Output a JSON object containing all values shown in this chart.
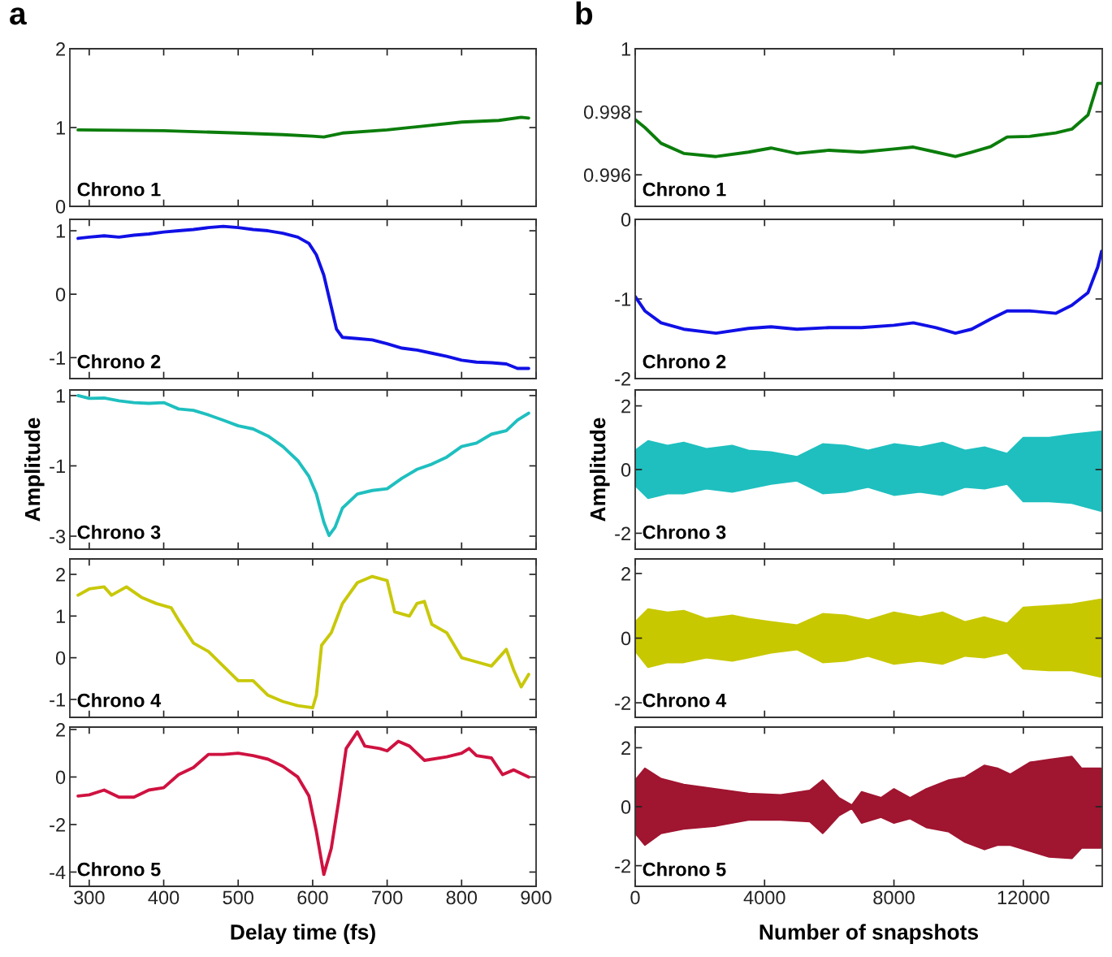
{
  "chart_data": [
    {
      "type": "line",
      "title": "a",
      "annotations": [
        "Chrono 1"
      ],
      "xlim": [
        274,
        900
      ],
      "xticks": [
        300,
        400,
        500,
        600,
        700,
        800,
        900
      ],
      "ylim": [
        0,
        2
      ],
      "yticks": [
        0,
        1,
        2
      ],
      "tick_labels": "y",
      "series": [
        {
          "color": "#0b7d0b",
          "x": [
            285,
            400,
            500,
            560,
            600,
            615,
            640,
            700,
            750,
            800,
            850,
            880,
            890
          ],
          "values": [
            0.97,
            0.96,
            0.93,
            0.91,
            0.89,
            0.88,
            0.93,
            0.97,
            1.02,
            1.07,
            1.09,
            1.13,
            1.12
          ]
        }
      ]
    },
    {
      "type": "line",
      "annotations": [
        "Chrono 2"
      ],
      "xlim": [
        274,
        900
      ],
      "xticks": [
        300,
        400,
        500,
        600,
        700,
        800,
        900
      ],
      "ylim": [
        -1.33,
        1.18
      ],
      "yticks": [
        -1,
        0,
        1
      ],
      "tick_labels": "y",
      "series": [
        {
          "color": "#1010e6",
          "x": [
            285,
            300,
            320,
            340,
            360,
            380,
            400,
            420,
            440,
            460,
            480,
            500,
            520,
            540,
            560,
            580,
            595,
            605,
            615,
            625,
            632,
            640,
            660,
            680,
            700,
            720,
            740,
            760,
            780,
            800,
            820,
            840,
            860,
            875,
            890
          ],
          "values": [
            0.88,
            0.9,
            0.92,
            0.9,
            0.93,
            0.95,
            0.98,
            1.0,
            1.02,
            1.05,
            1.07,
            1.05,
            1.02,
            1.0,
            0.96,
            0.9,
            0.8,
            0.62,
            0.3,
            -0.2,
            -0.55,
            -0.68,
            -0.7,
            -0.72,
            -0.78,
            -0.85,
            -0.88,
            -0.93,
            -0.98,
            -1.04,
            -1.07,
            -1.08,
            -1.1,
            -1.17,
            -1.17
          ]
        }
      ]
    },
    {
      "type": "line",
      "ylabel": "Amplitude",
      "annotations": [
        "Chrono 3"
      ],
      "xlim": [
        274,
        900
      ],
      "xticks": [
        300,
        400,
        500,
        600,
        700,
        800,
        900
      ],
      "ylim": [
        -3.37,
        1.16
      ],
      "yticks": [
        -3,
        -1,
        1
      ],
      "tick_labels": "y",
      "series": [
        {
          "color": "#1fbfbf",
          "x": [
            285,
            300,
            320,
            340,
            360,
            380,
            400,
            420,
            440,
            460,
            480,
            500,
            520,
            540,
            560,
            580,
            595,
            605,
            615,
            622,
            630,
            640,
            660,
            680,
            700,
            720,
            740,
            760,
            780,
            800,
            820,
            840,
            860,
            875,
            890
          ],
          "values": [
            1.0,
            0.92,
            0.93,
            0.85,
            0.8,
            0.78,
            0.8,
            0.62,
            0.58,
            0.45,
            0.3,
            0.14,
            0.05,
            -0.15,
            -0.45,
            -0.85,
            -1.3,
            -1.8,
            -2.6,
            -2.98,
            -2.75,
            -2.2,
            -1.8,
            -1.7,
            -1.65,
            -1.35,
            -1.1,
            -0.95,
            -0.75,
            -0.45,
            -0.35,
            -0.1,
            0.0,
            0.3,
            0.5
          ]
        }
      ]
    },
    {
      "type": "line",
      "annotations": [
        "Chrono 4"
      ],
      "xlim": [
        274,
        900
      ],
      "xticks": [
        300,
        400,
        500,
        600,
        700,
        800,
        900
      ],
      "ylim": [
        -1.43,
        2.37
      ],
      "yticks": [
        -1,
        0,
        1,
        2
      ],
      "tick_labels": "y",
      "series": [
        {
          "color": "#c8c80a",
          "x": [
            285,
            300,
            320,
            330,
            350,
            370,
            390,
            410,
            420,
            440,
            460,
            480,
            500,
            520,
            540,
            560,
            580,
            600,
            605,
            612,
            625,
            640,
            660,
            680,
            700,
            710,
            730,
            740,
            750,
            760,
            780,
            800,
            820,
            840,
            860,
            870,
            880,
            890
          ],
          "values": [
            1.5,
            1.65,
            1.7,
            1.5,
            1.7,
            1.45,
            1.3,
            1.2,
            0.9,
            0.35,
            0.15,
            -0.2,
            -0.55,
            -0.55,
            -0.9,
            -1.05,
            -1.15,
            -1.2,
            -0.9,
            0.3,
            0.6,
            1.3,
            1.8,
            1.95,
            1.85,
            1.1,
            1.0,
            1.3,
            1.35,
            0.8,
            0.6,
            0.0,
            -0.1,
            -0.2,
            0.2,
            -0.3,
            -0.7,
            -0.4
          ]
        }
      ]
    },
    {
      "type": "line",
      "xlabel": "Delay time (fs)",
      "annotations": [
        "Chrono 5"
      ],
      "xlim": [
        274,
        900
      ],
      "xticks": [
        300,
        400,
        500,
        600,
        700,
        800,
        900
      ],
      "ylim": [
        -4.6,
        2.1
      ],
      "yticks": [
        -4,
        -2,
        0,
        2
      ],
      "series": [
        {
          "color": "#cf1240",
          "x": [
            285,
            300,
            320,
            340,
            360,
            380,
            400,
            420,
            440,
            460,
            480,
            500,
            520,
            540,
            560,
            580,
            595,
            605,
            615,
            625,
            635,
            645,
            660,
            670,
            690,
            700,
            715,
            730,
            750,
            780,
            800,
            810,
            820,
            840,
            855,
            870,
            890
          ],
          "values": [
            -0.8,
            -0.75,
            -0.55,
            -0.85,
            -0.85,
            -0.55,
            -0.45,
            0.1,
            0.4,
            0.95,
            0.95,
            1.0,
            0.9,
            0.75,
            0.45,
            0.0,
            -0.8,
            -2.3,
            -4.1,
            -3.0,
            -1.0,
            1.2,
            1.9,
            1.3,
            1.2,
            1.1,
            1.5,
            1.3,
            0.7,
            0.85,
            1.0,
            1.2,
            0.9,
            0.8,
            0.1,
            0.3,
            0.0
          ]
        }
      ]
    },
    {
      "type": "line",
      "title": "b",
      "annotations": [
        "Chrono 1"
      ],
      "xlim": [
        0,
        14440
      ],
      "xticks": [
        0,
        4000,
        8000,
        12000
      ],
      "ylim": [
        0.995,
        1
      ],
      "yticks": [
        0.996,
        0.998,
        1
      ],
      "tick_labels": "y",
      "series": [
        {
          "color": "#0b7d0b",
          "x": [
            0,
            300,
            800,
            1500,
            2500,
            3500,
            4200,
            5000,
            6000,
            7000,
            8000,
            8600,
            9300,
            9900,
            10400,
            11000,
            11500,
            12200,
            13000,
            13500,
            14000,
            14300,
            14420
          ],
          "values": [
            0.99775,
            0.9975,
            0.997,
            0.99668,
            0.99658,
            0.99672,
            0.99685,
            0.99668,
            0.99678,
            0.99672,
            0.99682,
            0.99688,
            0.99672,
            0.99658,
            0.99672,
            0.9969,
            0.9972,
            0.99722,
            0.99733,
            0.99745,
            0.9979,
            0.9989,
            0.9989
          ]
        }
      ]
    },
    {
      "type": "line",
      "annotations": [
        "Chrono 2"
      ],
      "xlim": [
        0,
        14440
      ],
      "xticks": [
        0,
        4000,
        8000,
        12000
      ],
      "ylim": [
        -2,
        0
      ],
      "yticks": [
        -2,
        -1,
        0
      ],
      "tick_labels": "y",
      "series": [
        {
          "color": "#1010e6",
          "x": [
            0,
            300,
            800,
            1500,
            2500,
            3500,
            4200,
            5000,
            6000,
            7000,
            8000,
            8600,
            9300,
            9900,
            10400,
            11000,
            11500,
            12200,
            13000,
            13500,
            14000,
            14300,
            14420
          ],
          "values": [
            -0.97,
            -1.15,
            -1.3,
            -1.38,
            -1.43,
            -1.37,
            -1.35,
            -1.38,
            -1.36,
            -1.36,
            -1.33,
            -1.3,
            -1.36,
            -1.43,
            -1.38,
            -1.25,
            -1.15,
            -1.15,
            -1.18,
            -1.08,
            -0.92,
            -0.6,
            -0.4
          ]
        }
      ]
    },
    {
      "type": "line",
      "ylabel": "Amplitude",
      "annotations": [
        "Chrono 3"
      ],
      "xlim": [
        0,
        14440
      ],
      "xticks": [
        0,
        4000,
        8000,
        12000
      ],
      "ylim": [
        -2.5,
        2.5
      ],
      "yticks": [
        -2,
        0,
        2
      ],
      "tick_labels": "y",
      "series": [
        {
          "type": "area",
          "color": "#1fbfbf",
          "x": [
            0,
            400,
            1000,
            1500,
            2200,
            3000,
            3500,
            4200,
            5000,
            5800,
            6500,
            7200,
            8000,
            8800,
            9500,
            10200,
            10800,
            11500,
            12000,
            12800,
            13500,
            14400
          ],
          "values": [
            0.6,
            0.9,
            0.75,
            0.85,
            0.65,
            0.75,
            0.6,
            0.55,
            0.4,
            0.8,
            0.75,
            0.6,
            0.8,
            0.7,
            0.85,
            0.6,
            0.7,
            0.5,
            1.0,
            1.0,
            1.1,
            1.2
          ]
        },
        {
          "type": "area",
          "color": "#1fbfbf",
          "x": [
            0,
            400,
            1000,
            1500,
            2200,
            3000,
            3500,
            4200,
            5000,
            5800,
            6500,
            7200,
            8000,
            8800,
            9500,
            10200,
            10800,
            11500,
            12000,
            12800,
            13500,
            14400
          ],
          "values": [
            -0.5,
            -0.9,
            -0.75,
            -0.75,
            -0.6,
            -0.7,
            -0.6,
            -0.45,
            -0.35,
            -0.75,
            -0.7,
            -0.55,
            -0.8,
            -0.7,
            -0.8,
            -0.55,
            -0.6,
            -0.45,
            -1.0,
            -1.0,
            -1.05,
            -1.3
          ]
        }
      ]
    },
    {
      "type": "line",
      "annotations": [
        "Chrono 4"
      ],
      "xlim": [
        0,
        14440
      ],
      "xticks": [
        0,
        4000,
        8000,
        12000
      ],
      "ylim": [
        -2.45,
        2.45
      ],
      "yticks": [
        -2,
        0,
        2
      ],
      "tick_labels": "y",
      "series": [
        {
          "type": "area",
          "color": "#c8c800",
          "x": [
            0,
            400,
            1000,
            1500,
            2200,
            3000,
            3500,
            4200,
            5000,
            5800,
            6500,
            7200,
            8000,
            8800,
            9500,
            10200,
            10800,
            11500,
            12000,
            12800,
            13500,
            14400
          ],
          "values": [
            0.5,
            0.9,
            0.8,
            0.85,
            0.6,
            0.7,
            0.6,
            0.5,
            0.4,
            0.75,
            0.7,
            0.55,
            0.8,
            0.65,
            0.8,
            0.5,
            0.65,
            0.45,
            0.95,
            1.0,
            1.05,
            1.2
          ]
        },
        {
          "type": "area",
          "color": "#c8c800",
          "x": [
            0,
            400,
            1000,
            1500,
            2200,
            3000,
            3500,
            4200,
            5000,
            5800,
            6500,
            7200,
            8000,
            8800,
            9500,
            10200,
            10800,
            11500,
            12000,
            12800,
            13500,
            14400
          ],
          "values": [
            -0.4,
            -0.9,
            -0.75,
            -0.75,
            -0.6,
            -0.7,
            -0.6,
            -0.45,
            -0.35,
            -0.75,
            -0.7,
            -0.55,
            -0.8,
            -0.7,
            -0.8,
            -0.55,
            -0.6,
            -0.45,
            -0.95,
            -1.0,
            -1.0,
            -1.2
          ]
        }
      ]
    },
    {
      "type": "line",
      "xlabel": "Number of snapshots",
      "annotations": [
        "Chrono 5"
      ],
      "xlim": [
        0,
        14440
      ],
      "xticks": [
        0,
        4000,
        8000,
        12000
      ],
      "ylim": [
        -2.7,
        2.7
      ],
      "yticks": [
        -2,
        0,
        2
      ],
      "series": [
        {
          "type": "area",
          "color": "#a01530",
          "x": [
            0,
            300,
            800,
            1500,
            2500,
            3500,
            4500,
            5400,
            5800,
            6300,
            6700,
            7000,
            7600,
            8000,
            8500,
            9000,
            9700,
            10200,
            10800,
            11200,
            11600,
            12200,
            12800,
            13500,
            13800,
            14400
          ],
          "values": [
            0.9,
            1.3,
            0.95,
            0.75,
            0.6,
            0.45,
            0.4,
            0.55,
            0.9,
            0.3,
            0.05,
            0.5,
            0.3,
            0.6,
            0.3,
            0.6,
            0.9,
            1.0,
            1.4,
            1.3,
            1.1,
            1.5,
            1.6,
            1.7,
            1.3,
            1.3
          ]
        },
        {
          "type": "area",
          "color": "#a01530",
          "x": [
            0,
            300,
            800,
            1500,
            2500,
            3500,
            4500,
            5400,
            5800,
            6300,
            6700,
            7000,
            7600,
            8000,
            8500,
            9000,
            9700,
            10200,
            10800,
            11200,
            11600,
            12200,
            12800,
            13500,
            13800,
            14400
          ],
          "values": [
            -0.9,
            -1.3,
            -0.9,
            -0.75,
            -0.65,
            -0.45,
            -0.45,
            -0.5,
            -0.9,
            -0.3,
            -0.05,
            -0.55,
            -0.35,
            -0.55,
            -0.4,
            -0.7,
            -0.85,
            -1.2,
            -1.45,
            -1.3,
            -1.3,
            -1.5,
            -1.7,
            -1.75,
            -1.4,
            -1.4
          ]
        }
      ]
    }
  ]
}
